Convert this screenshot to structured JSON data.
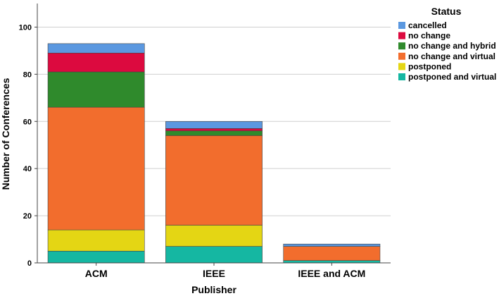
{
  "chart_data": {
    "type": "bar",
    "stacked": true,
    "categories": [
      "ACM",
      "IEEE",
      "IEEE and ACM"
    ],
    "xlabel": "Publisher",
    "ylabel": "Number of Conferences",
    "ylim": [
      0,
      110
    ],
    "yticks": [
      0,
      20,
      40,
      60,
      80,
      100
    ],
    "grid": true,
    "legend": {
      "title": "Status",
      "placement": "top-right"
    },
    "series": [
      {
        "name": "postponed and virtual",
        "color": "#15b7a2",
        "values": [
          5,
          7,
          1
        ]
      },
      {
        "name": "postponed",
        "color": "#e4d614",
        "values": [
          9,
          9,
          0
        ]
      },
      {
        "name": "no change and virtual",
        "color": "#f26d2d",
        "values": [
          52,
          38,
          6
        ]
      },
      {
        "name": "no change and hybrid",
        "color": "#2f8a2c",
        "values": [
          15,
          2,
          0
        ]
      },
      {
        "name": "no change",
        "color": "#dc0a3f",
        "values": [
          8,
          1,
          0
        ]
      },
      {
        "name": "cancelled",
        "color": "#5b98e0",
        "values": [
          4,
          3,
          1
        ]
      }
    ]
  }
}
